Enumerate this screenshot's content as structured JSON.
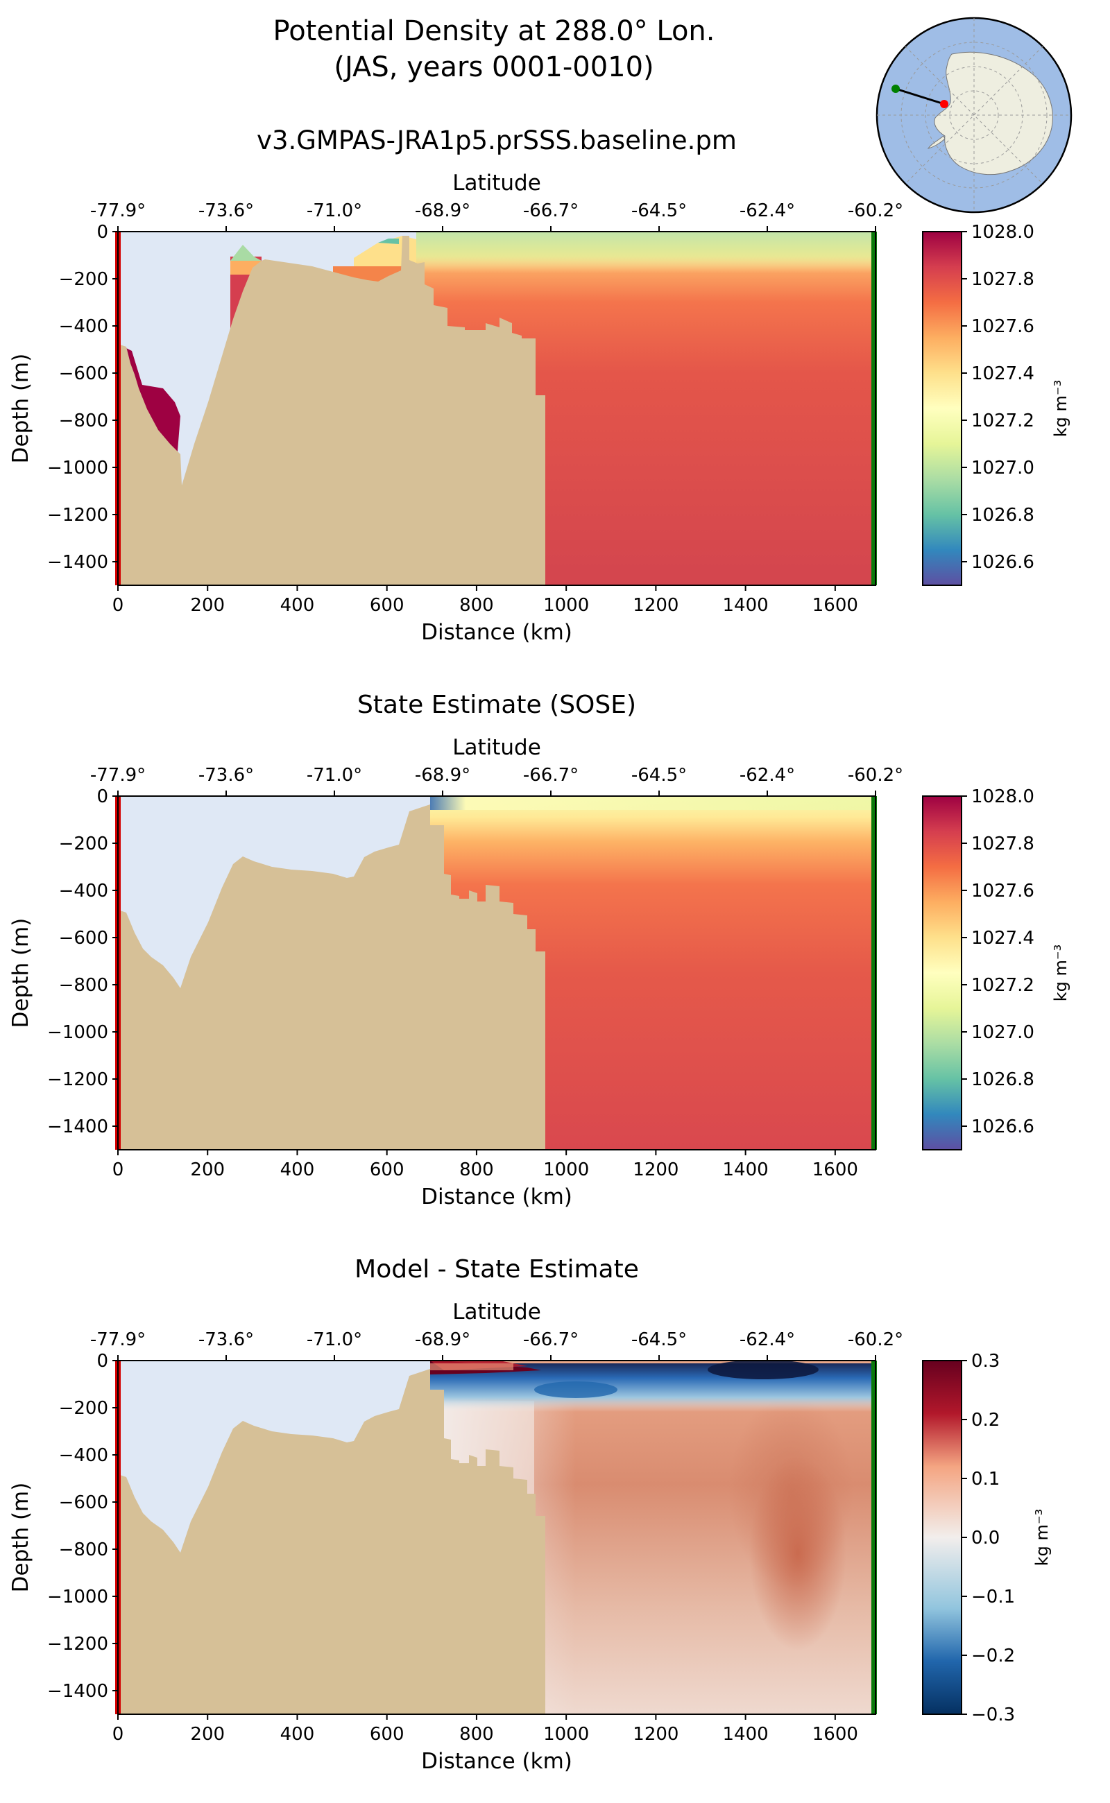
{
  "figure": {
    "title_line1": "Potential Density at 288.0° Lon.",
    "title_line2": "(JAS, years 0001-0010)"
  },
  "inset_map": {
    "type": "polar-stereographic-antarctica",
    "ocean_color": "#9fbde6",
    "land_color": "#eeeee0",
    "start_marker_color": "#ff0000",
    "end_marker_color": "#008000"
  },
  "colors": {
    "land": "#d6c097",
    "no_data": "#dfe8f5",
    "start_line": "#d40000",
    "end_line": "#0a7a0a"
  },
  "chart_data": [
    {
      "type": "heatmap",
      "title": "v3.GMPAS-JRA1p5.prSSS.baseline.pm",
      "xlabel": "Distance (km)",
      "ylabel": "Depth (m)",
      "top_xlabel": "Latitude",
      "xlim": [
        0,
        1690
      ],
      "ylim": [
        -1500,
        0
      ],
      "xticks": [
        "0",
        "200",
        "400",
        "600",
        "800",
        "1000",
        "1200",
        "1400",
        "1600"
      ],
      "yticks": [
        "0",
        "−200",
        "−400",
        "−600",
        "−800",
        "−1000",
        "−1200",
        "−1400"
      ],
      "lat_ticks": [
        "-77.9°",
        "-73.6°",
        "-71.0°",
        "-68.9°",
        "-66.7°",
        "-64.5°",
        "-62.4°",
        "-60.2°"
      ],
      "colorbar": {
        "label": "kg m⁻³",
        "colormap": "Spectral_r",
        "range": [
          1026.5,
          1028.0
        ],
        "ticks": [
          "1028.0",
          "1027.8",
          "1027.6",
          "1027.4",
          "1027.2",
          "1027.0",
          "1026.8",
          "1026.6"
        ]
      }
    },
    {
      "type": "heatmap",
      "title": "State Estimate (SOSE)",
      "xlabel": "Distance (km)",
      "ylabel": "Depth (m)",
      "top_xlabel": "Latitude",
      "xlim": [
        0,
        1690
      ],
      "ylim": [
        -1500,
        0
      ],
      "xticks": [
        "0",
        "200",
        "400",
        "600",
        "800",
        "1000",
        "1200",
        "1400",
        "1600"
      ],
      "yticks": [
        "0",
        "−200",
        "−400",
        "−600",
        "−800",
        "−1000",
        "−1200",
        "−1400"
      ],
      "lat_ticks": [
        "-77.9°",
        "-73.6°",
        "-71.0°",
        "-68.9°",
        "-66.7°",
        "-64.5°",
        "-62.4°",
        "-60.2°"
      ],
      "colorbar": {
        "label": "kg m⁻³",
        "colormap": "Spectral_r",
        "range": [
          1026.5,
          1028.0
        ],
        "ticks": [
          "1028.0",
          "1027.8",
          "1027.6",
          "1027.4",
          "1027.2",
          "1027.0",
          "1026.8",
          "1026.6"
        ]
      }
    },
    {
      "type": "heatmap",
      "title": "Model - State Estimate",
      "xlabel": "Distance (km)",
      "ylabel": "Depth (m)",
      "top_xlabel": "Latitude",
      "xlim": [
        0,
        1690
      ],
      "ylim": [
        -1500,
        0
      ],
      "xticks": [
        "0",
        "200",
        "400",
        "600",
        "800",
        "1000",
        "1200",
        "1400",
        "1600"
      ],
      "yticks": [
        "0",
        "−200",
        "−400",
        "−600",
        "−800",
        "−1000",
        "−1200",
        "−1400"
      ],
      "lat_ticks": [
        "-77.9°",
        "-73.6°",
        "-71.0°",
        "-68.9°",
        "-66.7°",
        "-64.5°",
        "-62.4°",
        "-60.2°"
      ],
      "colorbar": {
        "label": "kg m⁻³",
        "colormap": "RdBu_r",
        "range": [
          -0.3,
          0.3
        ],
        "ticks": [
          "0.3",
          "0.2",
          "0.1",
          "0.0",
          "−0.1",
          "−0.2",
          "−0.3"
        ]
      }
    }
  ]
}
